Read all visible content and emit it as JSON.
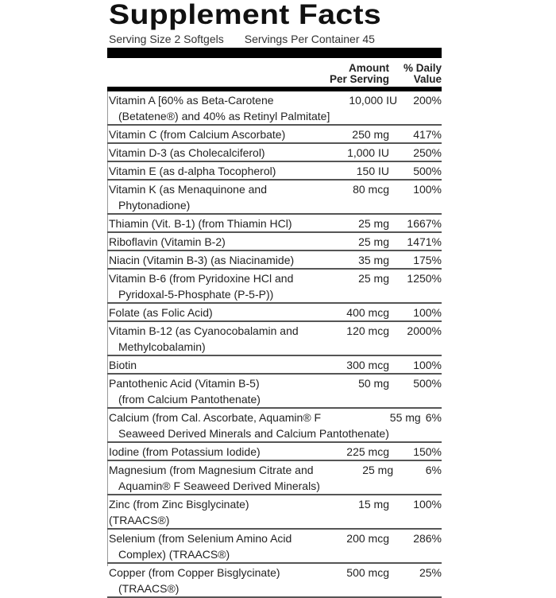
{
  "title": "Supplement Facts",
  "serving_size": "Serving Size 2 Softgels",
  "servings_per_container": "Servings Per Container 45",
  "header": {
    "amount_line1": "Amount",
    "amount_line2": "Per Serving",
    "dv_line1": "% Daily",
    "dv_line2": "Value"
  },
  "rows": [
    {
      "name": "Vitamin A [60% as Beta-Carotene",
      "name2": "(Betatene®) and 40% as Retinyl Palmitate]",
      "amount": "10,000 IU",
      "dv": "200%"
    },
    {
      "name": "Vitamin C (from Calcium Ascorbate)",
      "amount": "250 mg",
      "dv": "417%"
    },
    {
      "name": "Vitamin D-3 (as Cholecalciferol)",
      "amount": "1,000 IU",
      "dv": "250%"
    },
    {
      "name": "Vitamin E (as d-alpha Tocopherol)",
      "amount": "150 IU",
      "dv": "500%"
    },
    {
      "name": "Vitamin K (as Menaquinone and",
      "name2": "Phytonadione)",
      "amount": "80 mcg",
      "dv": "100%"
    },
    {
      "name": "Thiamin (Vit. B-1) (from Thiamin HCl)",
      "amount": "25 mg",
      "dv": "1667%"
    },
    {
      "name": "Riboflavin (Vitamin B-2)",
      "amount": "25 mg",
      "dv": "1471%"
    },
    {
      "name": "Niacin (Vitamin B-3) (as Niacinamide)",
      "amount": "35 mg",
      "dv": "175%"
    },
    {
      "name": "Vitamin B-6 (from Pyridoxine HCl and",
      "name2": "Pyridoxal-5-Phosphate (P-5-P))",
      "amount": "25 mg",
      "dv": "1250%"
    },
    {
      "name": "Folate (as Folic Acid)",
      "amount": "400 mcg",
      "dv": "100%"
    },
    {
      "name": "Vitamin B-12 (as Cyanocobalamin and",
      "name2": "Methylcobalamin)",
      "amount": "120 mcg",
      "dv": "2000%"
    },
    {
      "name": "Biotin",
      "amount": "300 mcg",
      "dv": "100%"
    },
    {
      "name": "Pantothenic Acid (Vitamin B-5)",
      "name2": "(from Calcium Pantothenate)",
      "amount": "50 mg",
      "dv": "500%"
    },
    {
      "name": "Calcium (from Cal. Ascorbate, Aquamin® F",
      "name2": "Seaweed Derived Minerals and Calcium Pantothenate)",
      "amount": "55 mg",
      "dv": "6%"
    },
    {
      "name": "Iodine (from Potassium Iodide)",
      "amount": "225 mcg",
      "dv": "150%"
    },
    {
      "name": "Magnesium (from Magnesium Citrate and",
      "name2": "Aquamin® F Seaweed Derived Minerals)",
      "amount": "25 mg",
      "dv": "6%"
    },
    {
      "name": "Zinc (from Zinc Bisglycinate) (TRAACS®)",
      "amount": "15 mg",
      "dv": "100%"
    },
    {
      "name": "Selenium (from Selenium Amino Acid",
      "name2": "Complex) (TRAACS®)",
      "amount": "200 mcg",
      "dv": "286%"
    },
    {
      "name": "Copper (from Copper Bisglycinate)",
      "name2": "(TRAACS®)",
      "amount": "500 mcg",
      "dv": "25%"
    }
  ]
}
